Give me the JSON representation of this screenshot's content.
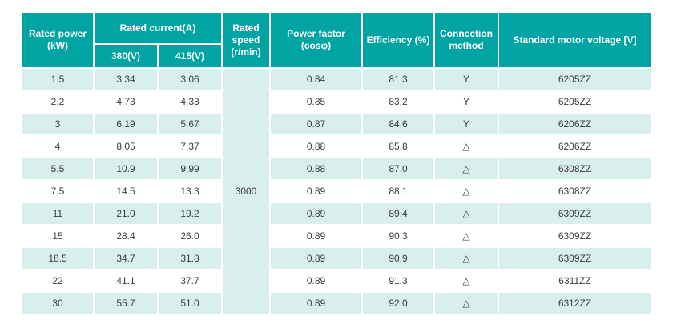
{
  "chart_data": {
    "type": "table",
    "header": {
      "rated_power": "Rated power (kW)",
      "rated_current": "Rated current(A)",
      "current_380": "380(V)",
      "current_415": "415(V)",
      "rated_speed": "Rated speed (r/min)",
      "power_factor": "Power factor (cosφ)",
      "efficiency": "Efficiency (%)",
      "connection": "Connection method",
      "voltage": "Standard motor voltage [V]"
    },
    "rated_speed_value": "3000",
    "rows": [
      {
        "power": "1.5",
        "i380": "3.34",
        "i415": "3.06",
        "pf": "0.84",
        "eff": "81.3",
        "conn": "Y",
        "volt": "6205ZZ"
      },
      {
        "power": "2.2",
        "i380": "4.73",
        "i415": "4.33",
        "pf": "0.85",
        "eff": "83.2",
        "conn": "Y",
        "volt": "6205ZZ"
      },
      {
        "power": "3",
        "i380": "6.19",
        "i415": "5.67",
        "pf": "0.87",
        "eff": "84.6",
        "conn": "Y",
        "volt": "6206ZZ"
      },
      {
        "power": "4",
        "i380": "8.05",
        "i415": "7.37",
        "pf": "0.88",
        "eff": "85.8",
        "conn": "△",
        "volt": "6206ZZ"
      },
      {
        "power": "5.5",
        "i380": "10.9",
        "i415": "9.99",
        "pf": "0.88",
        "eff": "87.0",
        "conn": "△",
        "volt": "6308ZZ"
      },
      {
        "power": "7.5",
        "i380": "14.5",
        "i415": "13.3",
        "pf": "0.89",
        "eff": "88.1",
        "conn": "△",
        "volt": "6308ZZ"
      },
      {
        "power": "11",
        "i380": "21.0",
        "i415": "19.2",
        "pf": "0.89",
        "eff": "89.4",
        "conn": "△",
        "volt": "6309ZZ"
      },
      {
        "power": "15",
        "i380": "28.4",
        "i415": "26.0",
        "pf": "0.89",
        "eff": "90.3",
        "conn": "△",
        "volt": "6309ZZ"
      },
      {
        "power": "18.5",
        "i380": "34.7",
        "i415": "31.8",
        "pf": "0.89",
        "eff": "90.9",
        "conn": "△",
        "volt": "6309ZZ"
      },
      {
        "power": "22",
        "i380": "41.1",
        "i415": "37.7",
        "pf": "0.89",
        "eff": "91.3",
        "conn": "△",
        "volt": "6311ZZ"
      },
      {
        "power": "30",
        "i380": "55.7",
        "i415": "51.0",
        "pf": "0.89",
        "eff": "92.0",
        "conn": "△",
        "volt": "6312ZZ"
      }
    ]
  },
  "theme": {
    "header_bg": "#00a4a2",
    "row_alt_bg": "#d9efee",
    "header_text": "#ffffff",
    "body_text": "#3c3c3c"
  }
}
